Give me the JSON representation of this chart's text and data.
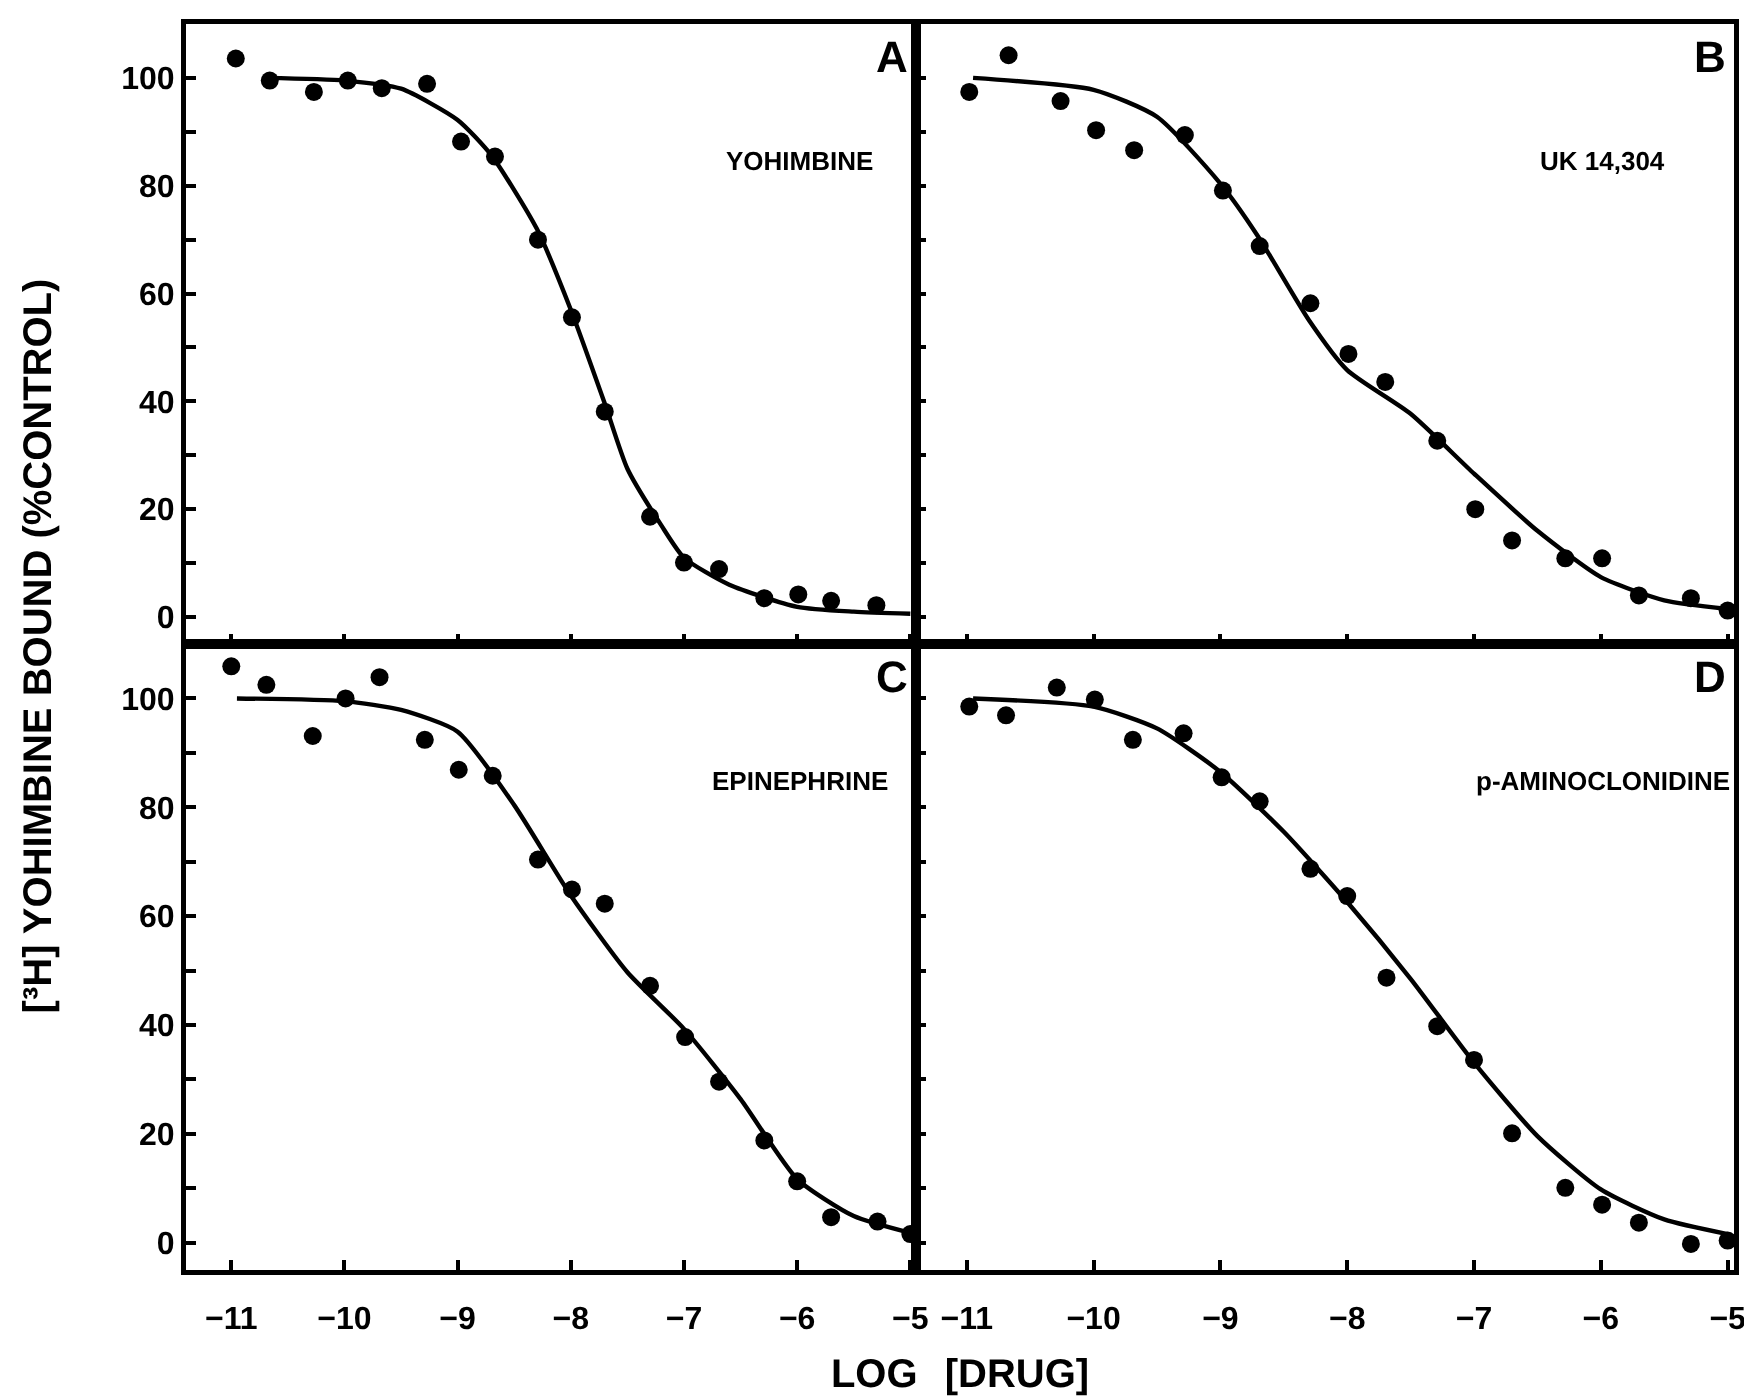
{
  "chart_data": [
    {
      "type": "scatter",
      "ylabel": "[³H] YOHIMBINE BOUND (%CONTROL)",
      "annotations": [
        "A",
        "YOHIMBINE"
      ],
      "tick_labels": "y",
      "xlim": [
        -11.4,
        -4.95
      ],
      "ylim": [
        -5,
        110
      ],
      "xticks": [
        -11,
        -10,
        -9,
        -8,
        -7,
        -6,
        -5
      ],
      "yticks": [
        0,
        {
          "value": 10,
          "label": null
        },
        20,
        {
          "value": 30,
          "label": null
        },
        40,
        {
          "value": 50,
          "label": null
        },
        60,
        {
          "value": 70,
          "label": null
        },
        80,
        {
          "value": 90,
          "label": null
        },
        100
      ],
      "series": [
        {
          "color": "#000000",
          "marker": "circle",
          "x": [
            -10.96,
            -10.66,
            -10.27,
            -9.97,
            -9.67,
            -9.27,
            -8.97,
            -8.67,
            -8.29,
            -7.99,
            -7.7,
            -7.3,
            -7.0,
            -6.69,
            -6.29,
            -5.99,
            -5.7,
            -5.3
          ],
          "values": [
            103.6,
            99.5,
            97.4,
            99.5,
            98.1,
            98.9,
            88.2,
            85.4,
            70.0,
            55.6,
            38.1,
            18.6,
            10.1,
            8.9,
            3.5,
            4.2,
            3.0,
            2.2
          ]
        },
        {
          "type": "line",
          "color": "#000000",
          "line_style": "solid",
          "x": [
            -10.7,
            -10.0,
            -9.5,
            -9.0,
            -8.7,
            -8.3,
            -8.0,
            -7.7,
            -7.5,
            -7.2,
            -7.0,
            -6.6,
            -6.0,
            -5.5,
            -5.0
          ],
          "values": [
            100,
            99.5,
            98,
            92.2,
            85.6,
            72,
            57,
            39.6,
            27.5,
            17,
            11,
            6,
            1.9,
            1,
            0.6
          ]
        }
      ]
    },
    {
      "type": "scatter",
      "annotations": [
        "B",
        "UK 14,304"
      ],
      "tick_labels": false,
      "xlim": [
        -11.4,
        -4.95
      ],
      "ylim": [
        -5,
        110
      ],
      "xticks": [
        -11,
        -10,
        -9,
        -8,
        -7,
        -6,
        -5
      ],
      "yticks": [
        0,
        {
          "value": 10,
          "label": null
        },
        20,
        {
          "value": 30,
          "label": null
        },
        40,
        {
          "value": 50,
          "label": null
        },
        60,
        {
          "value": 70,
          "label": null
        },
        80,
        {
          "value": 90,
          "label": null
        },
        100
      ],
      "series": [
        {
          "color": "#000000",
          "marker": "circle",
          "x": [
            -10.98,
            -10.67,
            -10.26,
            -9.98,
            -9.68,
            -9.28,
            -8.98,
            -8.69,
            -8.29,
            -7.99,
            -7.7,
            -7.29,
            -6.99,
            -6.7,
            -6.28,
            -5.99,
            -5.7,
            -5.29,
            -5.0
          ],
          "values": [
            97.4,
            104.2,
            95.7,
            90.3,
            86.6,
            89.4,
            79.1,
            68.8,
            58.2,
            48.8,
            43.6,
            32.7,
            20.0,
            14.2,
            10.9,
            10.9,
            4.0,
            3.5,
            1.2
          ]
        },
        {
          "type": "line",
          "color": "#000000",
          "line_style": "solid",
          "x": [
            -10.95,
            -10.0,
            -9.5,
            -9.0,
            -8.7,
            -8.3,
            -8.0,
            -7.5,
            -7.0,
            -6.5,
            -6.0,
            -5.5,
            -5.0
          ],
          "values": [
            100,
            97.8,
            92.8,
            80.4,
            70.5,
            55,
            45.8,
            37.7,
            26.6,
            16,
            7.4,
            3.1,
            1.5
          ]
        }
      ]
    },
    {
      "type": "scatter",
      "xlabel": "LOG [DRUG]",
      "annotations": [
        "C",
        "EPINEPHRINE"
      ],
      "xlim": [
        -11.4,
        -4.95
      ],
      "ylim": [
        -5,
        110
      ],
      "xticks": [
        -11,
        -10,
        -9,
        -8,
        -7,
        -6,
        -5
      ],
      "yticks": [
        0,
        {
          "value": 10,
          "label": null
        },
        20,
        {
          "value": 30,
          "label": null
        },
        40,
        {
          "value": 50,
          "label": null
        },
        60,
        {
          "value": 70,
          "label": null
        },
        80,
        {
          "value": 90,
          "label": null
        },
        100
      ],
      "series": [
        {
          "color": "#000000",
          "marker": "circle",
          "x": [
            -11.0,
            -10.69,
            -10.28,
            -9.99,
            -9.69,
            -9.29,
            -8.99,
            -8.69,
            -8.29,
            -7.99,
            -7.7,
            -7.3,
            -6.99,
            -6.69,
            -6.29,
            -6.0,
            -5.7,
            -5.29,
            -5.0
          ],
          "values": [
            105.9,
            102.5,
            93.1,
            100,
            103.9,
            92.4,
            86.9,
            85.8,
            70.4,
            64.9,
            62.3,
            47.2,
            37.8,
            29.6,
            18.8,
            11.3,
            4.7,
            3.9,
            1.6
          ]
        },
        {
          "type": "line",
          "color": "#000000",
          "x": [
            -10.95,
            -10.0,
            -9.5,
            -9.0,
            -8.5,
            -8.0,
            -7.5,
            -7.0,
            -6.5,
            -6.0,
            -5.5,
            -5.0
          ],
          "line_style": "solid",
          "values": [
            100,
            99.5,
            97.9,
            93.9,
            80.4,
            63.8,
            49.7,
            39.3,
            26.4,
            11.7,
            4.9,
            1.8
          ]
        }
      ]
    },
    {
      "type": "scatter",
      "annotations": [
        "D",
        "p-AMINOCLONIDINE"
      ],
      "tick_labels": "x",
      "xlim": [
        -11.4,
        -4.95
      ],
      "ylim": [
        -5,
        110
      ],
      "xticks": [
        -11,
        -10,
        -9,
        -8,
        -7,
        -6,
        -5
      ],
      "yticks": [
        0,
        {
          "value": 10,
          "label": null
        },
        20,
        {
          "value": 30,
          "label": null
        },
        40,
        {
          "value": 50,
          "label": null
        },
        60,
        {
          "value": 70,
          "label": null
        },
        80,
        {
          "value": 90,
          "label": null
        },
        100
      ],
      "series": [
        {
          "color": "#000000",
          "marker": "circle",
          "x": [
            -10.98,
            -10.69,
            -10.29,
            -9.99,
            -9.69,
            -9.29,
            -8.99,
            -8.69,
            -8.29,
            -8.0,
            -7.69,
            -7.29,
            -7.0,
            -6.7,
            -6.28,
            -5.99,
            -5.7,
            -5.29,
            -5.0
          ],
          "values": [
            98.5,
            96.9,
            102,
            99.8,
            92.4,
            93.6,
            85.5,
            81.1,
            68.7,
            63.7,
            48.7,
            39.8,
            33.6,
            20.1,
            10.1,
            7.0,
            3.7,
            -0.2,
            0.4
          ]
        },
        {
          "type": "line",
          "color": "#000000",
          "x": [
            -10.95,
            -10.0,
            -9.5,
            -9.0,
            -8.5,
            -8.0,
            -7.5,
            -7.0,
            -6.5,
            -6.0,
            -5.5,
            -5.0
          ],
          "line_style": "solid",
          "values": [
            100,
            98.5,
            94.5,
            86.5,
            75.5,
            62.6,
            48.5,
            33.1,
            19.6,
            9.8,
            4.3,
            1.6
          ]
        }
      ]
    }
  ]
}
